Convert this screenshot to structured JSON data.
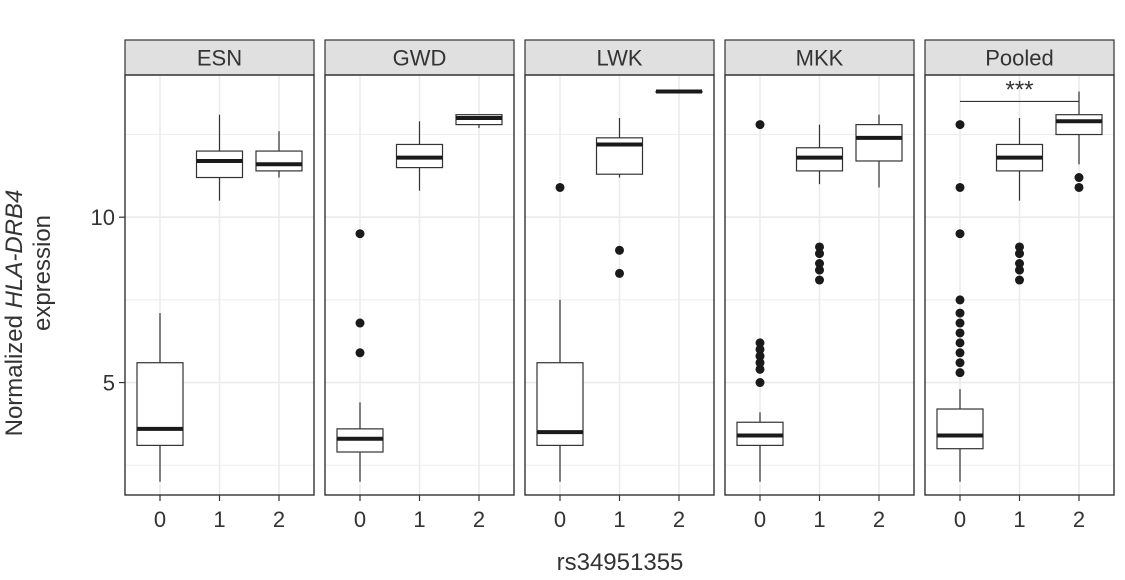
{
  "chart_data": {
    "type": "boxplot",
    "facet_variable": "population",
    "xlabel": "rs34951355",
    "ylabel": {
      "prefix": "Normalized ",
      "gene": "HLA-DRB4",
      "line2": "expression"
    },
    "y_ticks": [
      5,
      10
    ],
    "ylim": [
      1.6,
      14.3
    ],
    "x_categories": [
      "0",
      "1",
      "2"
    ],
    "panels": [
      {
        "name": "ESN",
        "boxes": [
          {
            "genotype": "0",
            "low": 2.0,
            "q1": 3.1,
            "median": 3.6,
            "q3": 5.6,
            "high": 7.1,
            "outliers": []
          },
          {
            "genotype": "1",
            "low": 10.5,
            "q1": 11.2,
            "median": 11.7,
            "q3": 12.0,
            "high": 13.1,
            "outliers": []
          },
          {
            "genotype": "2",
            "low": 11.2,
            "q1": 11.4,
            "median": 11.6,
            "q3": 12.0,
            "high": 12.6,
            "outliers": []
          }
        ],
        "annotation": null
      },
      {
        "name": "GWD",
        "boxes": [
          {
            "genotype": "0",
            "low": 2.0,
            "q1": 2.9,
            "median": 3.3,
            "q3": 3.6,
            "high": 4.4,
            "outliers": [
              5.9,
              6.8,
              9.5
            ]
          },
          {
            "genotype": "1",
            "low": 10.8,
            "q1": 11.5,
            "median": 11.8,
            "q3": 12.2,
            "high": 12.9,
            "outliers": []
          },
          {
            "genotype": "2",
            "low": 12.7,
            "q1": 12.8,
            "median": 13.0,
            "q3": 13.1,
            "high": 13.1,
            "outliers": []
          }
        ],
        "annotation": null
      },
      {
        "name": "LWK",
        "boxes": [
          {
            "genotype": "0",
            "low": 2.0,
            "q1": 3.1,
            "median": 3.5,
            "q3": 5.6,
            "high": 7.5,
            "outliers": [
              10.9
            ]
          },
          {
            "genotype": "1",
            "low": 11.2,
            "q1": 11.3,
            "median": 12.2,
            "q3": 12.4,
            "high": 13.0,
            "outliers": [
              8.3,
              9.0
            ]
          },
          {
            "genotype": "2",
            "low": 13.8,
            "q1": 13.8,
            "median": 13.8,
            "q3": 13.8,
            "high": 13.8,
            "outliers": []
          }
        ],
        "annotation": null
      },
      {
        "name": "MKK",
        "boxes": [
          {
            "genotype": "0",
            "low": 2.0,
            "q1": 3.1,
            "median": 3.4,
            "q3": 3.8,
            "high": 4.1,
            "outliers": [
              5.0,
              5.4,
              5.6,
              5.8,
              6.0,
              6.2,
              12.8
            ]
          },
          {
            "genotype": "1",
            "low": 11.0,
            "q1": 11.4,
            "median": 11.8,
            "q3": 12.1,
            "high": 12.8,
            "outliers": [
              8.1,
              8.4,
              8.6,
              8.9,
              9.1
            ]
          },
          {
            "genotype": "2",
            "low": 10.9,
            "q1": 11.7,
            "median": 12.4,
            "q3": 12.8,
            "high": 13.1,
            "outliers": []
          }
        ],
        "annotation": null
      },
      {
        "name": "Pooled",
        "boxes": [
          {
            "genotype": "0",
            "low": 2.0,
            "q1": 3.0,
            "median": 3.4,
            "q3": 4.2,
            "high": 4.8,
            "outliers": [
              5.3,
              5.6,
              5.9,
              6.2,
              6.5,
              6.8,
              7.1,
              7.5,
              9.5,
              10.9,
              12.8
            ]
          },
          {
            "genotype": "1",
            "low": 10.5,
            "q1": 11.4,
            "median": 11.8,
            "q3": 12.2,
            "high": 13.0,
            "outliers": [
              8.1,
              8.4,
              8.6,
              8.9,
              9.1
            ]
          },
          {
            "genotype": "2",
            "low": 11.6,
            "q1": 12.5,
            "median": 12.9,
            "q3": 13.1,
            "high": 13.8,
            "outliers": [
              10.9,
              11.2
            ]
          }
        ],
        "annotation": {
          "text": "***",
          "from": "0",
          "to": "2",
          "y": 13.5
        }
      }
    ],
    "grid": true,
    "colors": {
      "strip_bg": "#e0e0e0",
      "grid": "#ebebeb",
      "frame": "#333333",
      "box_fill": "#ffffff",
      "point": "#1a1a1a"
    }
  }
}
